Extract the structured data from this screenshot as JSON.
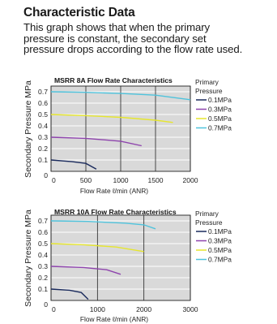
{
  "header": {
    "title": "Characteristic Data",
    "intro_lines": [
      "This graph shows that when the primary",
      "pressure is constant, the secondary set",
      "pressure drops according to the flow rate used."
    ]
  },
  "chart_data": [
    {
      "type": "line",
      "title": "MSRR 8A Flow Rate Characteristics",
      "xlabel": "Flow Rate  ℓ/min (ANR)",
      "ylabel": "Secondary Pressure  MPa",
      "xlim": [
        0,
        2000
      ],
      "ylim": [
        0,
        0.75
      ],
      "xticks": [
        "0",
        "500",
        "1000",
        "1500",
        "2000"
      ],
      "yticks": [
        "0.1",
        "0.2",
        "0.3",
        "0.4",
        "0.5",
        "0.6",
        "0.7"
      ],
      "grid": true,
      "legend_title": [
        "Primary",
        "Pressure"
      ],
      "series": [
        {
          "name": "0.1MPa",
          "color": "#1a2a5c",
          "points": [
            [
              0,
              0.1
            ],
            [
              300,
              0.085
            ],
            [
              500,
              0.07
            ],
            [
              650,
              0.02
            ]
          ]
        },
        {
          "name": "0.3MPa",
          "color": "#8e44ad",
          "points": [
            [
              0,
              0.3
            ],
            [
              500,
              0.29
            ],
            [
              1000,
              0.265
            ],
            [
              1300,
              0.225
            ]
          ]
        },
        {
          "name": "0.5MPa",
          "color": "#e6e62e",
          "points": [
            [
              0,
              0.5
            ],
            [
              500,
              0.49
            ],
            [
              1000,
              0.475
            ],
            [
              1500,
              0.45
            ],
            [
              1750,
              0.43
            ]
          ]
        },
        {
          "name": "0.7MPa",
          "color": "#4fc3dc",
          "points": [
            [
              0,
              0.7
            ],
            [
              500,
              0.695
            ],
            [
              1000,
              0.685
            ],
            [
              1500,
              0.67
            ],
            [
              2000,
              0.63
            ]
          ]
        }
      ]
    },
    {
      "type": "line",
      "title": "MSRR 10A Flow Rate Characteristics",
      "xlabel": "Flow Rate  ℓ/min (ANR)",
      "ylabel": "Secondary Pressure  MPa",
      "xlim": [
        0,
        3000
      ],
      "ylim": [
        0,
        0.75
      ],
      "xticks": [
        "0",
        "1000",
        "2000",
        "3000"
      ],
      "yticks": [
        "0.1",
        "0.2",
        "0.3",
        "0.4",
        "0.5",
        "0.6",
        "0.7"
      ],
      "grid": true,
      "legend_title": [
        "Primary",
        "Pressure"
      ],
      "series": [
        {
          "name": "0.1MPa",
          "color": "#1a2a5c",
          "points": [
            [
              0,
              0.1
            ],
            [
              400,
              0.09
            ],
            [
              650,
              0.07
            ],
            [
              800,
              0.01
            ]
          ]
        },
        {
          "name": "0.3MPa",
          "color": "#8e44ad",
          "points": [
            [
              0,
              0.3
            ],
            [
              700,
              0.29
            ],
            [
              1200,
              0.27
            ],
            [
              1500,
              0.23
            ]
          ]
        },
        {
          "name": "0.5MPa",
          "color": "#e6e62e",
          "points": [
            [
              0,
              0.5
            ],
            [
              700,
              0.49
            ],
            [
              1400,
              0.47
            ],
            [
              2000,
              0.43
            ]
          ]
        },
        {
          "name": "0.7MPa",
          "color": "#4fc3dc",
          "points": [
            [
              0,
              0.7
            ],
            [
              800,
              0.695
            ],
            [
              1600,
              0.68
            ],
            [
              2000,
              0.665
            ],
            [
              2250,
              0.63
            ]
          ]
        }
      ]
    }
  ]
}
